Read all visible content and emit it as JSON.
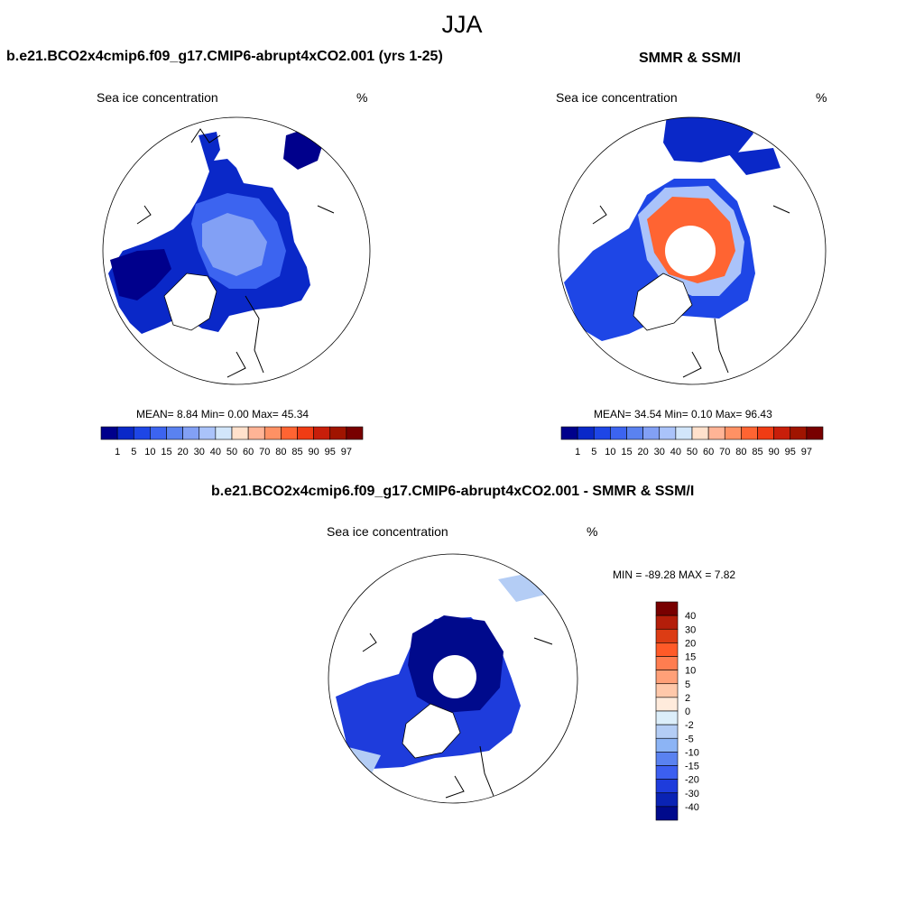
{
  "figure": {
    "title": "JJA",
    "panel1": {
      "title": "b.e21.BCO2x4cmip6.f09_g17.CMIP6-abrupt4xCO2.001 (yrs 1-25)",
      "left_label": "Sea ice concentration",
      "right_label": "%",
      "stats": "MEAN=   8.84  Min=   0.00  Max=  45.34"
    },
    "panel2": {
      "title": "SMMR & SSM/I",
      "left_label": "Sea ice concentration",
      "right_label": "%",
      "stats": "MEAN=  34.54  Min=   0.10  Max=  96.43"
    },
    "panel3": {
      "title": "b.e21.BCO2x4cmip6.f09_g17.CMIP6-abrupt4xCO2.001 - SMMR & SSM/I",
      "left_label": "Sea ice concentration",
      "right_label": "%",
      "stats": "MIN = -89.28 MAX =   7.82"
    },
    "colorbar_conc": {
      "labels": [
        "1",
        "5",
        "10",
        "15",
        "20",
        "30",
        "40",
        "50",
        "60",
        "70",
        "80",
        "85",
        "90",
        "95",
        "97"
      ],
      "colors": [
        "#00008c",
        "#0a28c8",
        "#1e46e6",
        "#3c64f0",
        "#5a82f0",
        "#82a0f5",
        "#aac3fa",
        "#d2e6fa",
        "#ffe1cc",
        "#ffb496",
        "#ff9164",
        "#ff6432",
        "#f03c14",
        "#c81e0a",
        "#a01400",
        "#780000"
      ]
    },
    "colorbar_diff": {
      "labels": [
        "40",
        "30",
        "20",
        "15",
        "10",
        "5",
        "2",
        "0",
        "-2",
        "-5",
        "-10",
        "-15",
        "-20",
        "-30",
        "-40"
      ],
      "colors": [
        "#780000",
        "#b41e0a",
        "#dc3c14",
        "#ff5a28",
        "#ff7d50",
        "#ffa078",
        "#ffc8aa",
        "#ffebdc",
        "#dceefa",
        "#b4cdf5",
        "#8cb4f5",
        "#5a82f0",
        "#3c5ff0",
        "#1e3cdc",
        "#0a23b4",
        "#000a8c"
      ]
    }
  }
}
